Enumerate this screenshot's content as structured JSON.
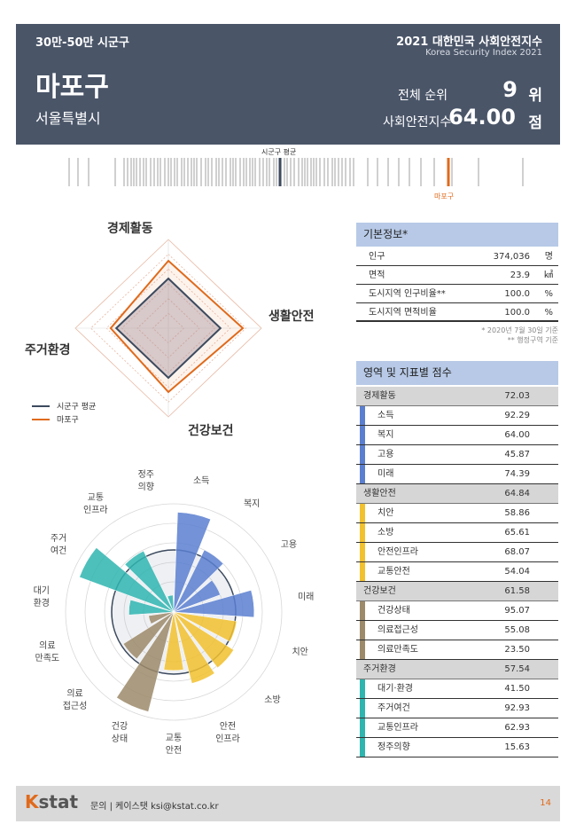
{
  "header": {
    "category": "30만-50만 시군구",
    "title": "2021 대한민국 사회안전지수",
    "subtitle": "Korea Security Index 2021",
    "region_name": "마포구",
    "city": "서울특별시",
    "rank_label": "전체 순위",
    "rank_value": "9",
    "rank_unit": "위",
    "index_label": "사회안전지수",
    "index_value": "64.00",
    "index_unit": "점"
  },
  "strip": {
    "avg_label": "시군구 평균",
    "region_label": "마포구",
    "avg_color": "#3c4a5e",
    "region_color": "#e06a1b",
    "bar_color": "#b0b0b0"
  },
  "radar": {
    "axes": [
      "경제활동",
      "생활안전",
      "건강보건",
      "주거환경"
    ],
    "legend": [
      {
        "label": "시군구 평균",
        "color": "#3c4a5e"
      },
      {
        "label": "마포구",
        "color": "#e06a1b"
      }
    ]
  },
  "chart_data": {
    "type": "polar-bar",
    "categories": [
      "소득",
      "복지",
      "고용",
      "미래",
      "치안",
      "소방",
      "안전인프라",
      "교통안전",
      "건강상태",
      "의료접근성",
      "의료만족도",
      "대기환경",
      "주거여건",
      "교통인프라",
      "정주의향"
    ],
    "category_labels": [
      "소득",
      "복지",
      "고용",
      "미래",
      "치안",
      "소방",
      "안전\n인프라",
      "교통\n안전",
      "건강\n상태",
      "의료\n접근성",
      "의료\n만족도",
      "대기\n환경",
      "주거\n여건",
      "교통\n인프라",
      "정주\n의향"
    ],
    "values": [
      92.29,
      64.0,
      45.87,
      74.39,
      58.86,
      65.61,
      68.07,
      54.04,
      95.07,
      55.08,
      23.5,
      41.5,
      92.93,
      62.93,
      15.63
    ],
    "groups": [
      "경제활동",
      "경제활동",
      "경제활동",
      "경제활동",
      "생활안전",
      "생활안전",
      "생활안전",
      "생활안전",
      "건강보건",
      "건강보건",
      "건강보건",
      "주거환경",
      "주거환경",
      "주거환경",
      "주거환경"
    ],
    "group_colors": {
      "경제활동": "#5b7fd0",
      "생활안전": "#f2c12e",
      "건강보건": "#9c8a6a",
      "주거환경": "#2fb5b0"
    },
    "ylim": [
      0,
      100
    ]
  },
  "basic_info": {
    "title": "기본정보*",
    "rows": [
      {
        "label": "인구",
        "value": "374,036",
        "unit": "명"
      },
      {
        "label": "면적",
        "value": "23.9",
        "unit": "㎢"
      },
      {
        "label": "도시지역 인구비율**",
        "value": "100.0",
        "unit": "%"
      },
      {
        "label": "도시지역 면적비율",
        "value": "100.0",
        "unit": "%"
      }
    ],
    "note1": "* 2020년 7월 30일 기준",
    "note2": "** 행정구역 기준"
  },
  "scores": {
    "title": "영역 및 지표별 점수",
    "sections": [
      {
        "name": "경제활동",
        "score": "72.03",
        "color": "#5b7fd0",
        "items": [
          {
            "label": "소득",
            "score": "92.29"
          },
          {
            "label": "복지",
            "score": "64.00"
          },
          {
            "label": "고용",
            "score": "45.87"
          },
          {
            "label": "미래",
            "score": "74.39"
          }
        ]
      },
      {
        "name": "생활안전",
        "score": "64.84",
        "color": "#f2c12e",
        "items": [
          {
            "label": "치안",
            "score": "58.86"
          },
          {
            "label": "소방",
            "score": "65.61"
          },
          {
            "label": "안전인프라",
            "score": "68.07"
          },
          {
            "label": "교통안전",
            "score": "54.04"
          }
        ]
      },
      {
        "name": "건강보건",
        "score": "61.58",
        "color": "#9c8a6a",
        "items": [
          {
            "label": "건강상태",
            "score": "95.07"
          },
          {
            "label": "의료접근성",
            "score": "55.08"
          },
          {
            "label": "의료만족도",
            "score": "23.50"
          }
        ]
      },
      {
        "name": "주거환경",
        "score": "57.54",
        "color": "#2fb5b0",
        "items": [
          {
            "label": "대기·환경",
            "score": "41.50"
          },
          {
            "label": "주거여건",
            "score": "92.93"
          },
          {
            "label": "교통인프라",
            "score": "62.93"
          },
          {
            "label": "정주의향",
            "score": "15.63"
          }
        ]
      }
    ]
  },
  "footer": {
    "logo_k": "K",
    "logo_rest": "stat",
    "contact": "문의 | 케이스탯 ksi@kstat.co.kr",
    "page": "14"
  }
}
